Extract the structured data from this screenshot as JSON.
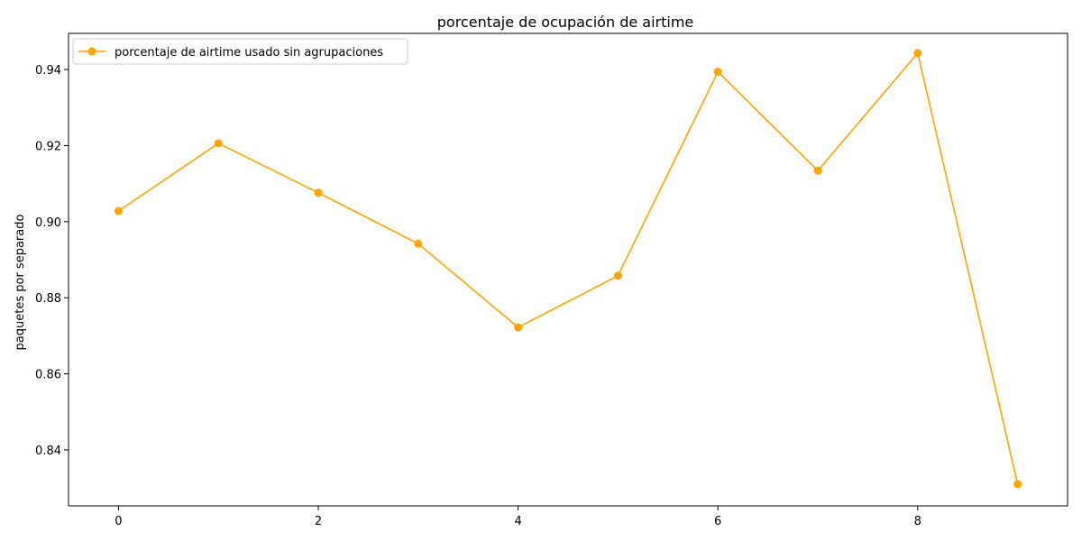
{
  "chart_data": {
    "type": "line",
    "title": "porcentaje de ocupación de airtime",
    "xlabel": "",
    "ylabel": "paquetes por separado",
    "x": [
      0,
      1,
      2,
      3,
      4,
      5,
      6,
      7,
      8,
      9
    ],
    "series": [
      {
        "name": "porcentaje de airtime usado sin agrupaciones",
        "color": "#ffa500",
        "marker": "circle",
        "values": [
          0.9028,
          0.9206,
          0.9076,
          0.8942,
          0.8722,
          0.8858,
          0.9394,
          0.9134,
          0.9443,
          0.831
        ]
      }
    ],
    "xlim": [
      -0.5,
      9.5
    ],
    "ylim": [
      0.8253,
      0.9495
    ],
    "xticks": [
      0,
      2,
      4,
      6,
      8
    ],
    "xtick_labels": [
      "0",
      "2",
      "4",
      "6",
      "8"
    ],
    "yticks": [
      0.84,
      0.86,
      0.88,
      0.9,
      0.92,
      0.94
    ],
    "ytick_labels": [
      "0.84",
      "0.86",
      "0.88",
      "0.90",
      "0.92",
      "0.94"
    ],
    "grid": false,
    "legend_position": "top-left"
  }
}
